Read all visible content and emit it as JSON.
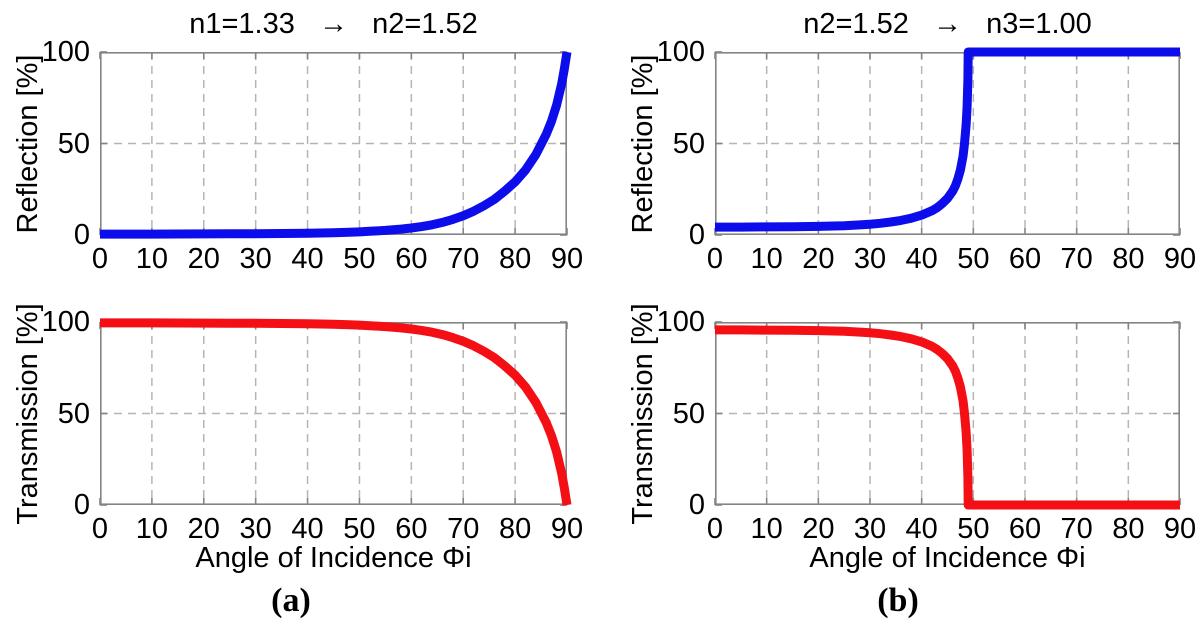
{
  "figure": {
    "background": "#ffffff",
    "captions": {
      "a": "(a)",
      "b": "(b)"
    }
  },
  "chart_data": [
    {
      "id": "a-reflection",
      "type": "line",
      "panel": "a",
      "title": "n1=1.33   →   n2=1.52",
      "ylabel": "Reflection [%]",
      "xlabel": "",
      "color": "#0d0deb",
      "xlim": [
        0,
        90
      ],
      "ylim": [
        0,
        100
      ],
      "xticks": [
        0,
        10,
        20,
        30,
        40,
        50,
        60,
        70,
        80,
        90
      ],
      "yticks": [
        0,
        50,
        100
      ],
      "grid": true,
      "legend": "none",
      "points": [
        [
          0,
          0.5
        ],
        [
          5,
          0.5
        ],
        [
          10,
          0.5
        ],
        [
          15,
          0.55
        ],
        [
          20,
          0.6
        ],
        [
          25,
          0.65
        ],
        [
          30,
          0.7
        ],
        [
          35,
          0.8
        ],
        [
          40,
          1.0
        ],
        [
          45,
          1.2
        ],
        [
          48,
          1.5
        ],
        [
          50,
          1.7
        ],
        [
          52,
          2.0
        ],
        [
          55,
          2.5
        ],
        [
          58,
          3.2
        ],
        [
          60,
          3.8
        ],
        [
          62,
          4.6
        ],
        [
          64,
          5.6
        ],
        [
          66,
          6.9
        ],
        [
          68,
          8.5
        ],
        [
          70,
          10.5
        ],
        [
          72,
          13
        ],
        [
          74,
          16
        ],
        [
          76,
          19.5
        ],
        [
          78,
          24
        ],
        [
          80,
          29
        ],
        [
          82,
          35.5
        ],
        [
          84,
          44
        ],
        [
          86,
          55
        ],
        [
          87,
          62
        ],
        [
          88,
          71
        ],
        [
          89,
          83
        ],
        [
          89.5,
          91
        ],
        [
          90,
          100
        ]
      ]
    },
    {
      "id": "a-transmission",
      "type": "line",
      "panel": "a",
      "title": "",
      "ylabel": "Transmission [%]",
      "xlabel": "Angle of Incidence Φi",
      "color": "#f40f15",
      "xlim": [
        0,
        90
      ],
      "ylim": [
        0,
        100
      ],
      "xticks": [
        0,
        10,
        20,
        30,
        40,
        50,
        60,
        70,
        80,
        90
      ],
      "yticks": [
        0,
        50,
        100
      ],
      "grid": true,
      "legend": "none",
      "points": [
        [
          0,
          99.5
        ],
        [
          5,
          99.5
        ],
        [
          10,
          99.5
        ],
        [
          15,
          99.45
        ],
        [
          20,
          99.4
        ],
        [
          25,
          99.35
        ],
        [
          30,
          99.3
        ],
        [
          35,
          99.2
        ],
        [
          40,
          99.0
        ],
        [
          45,
          98.8
        ],
        [
          48,
          98.5
        ],
        [
          50,
          98.3
        ],
        [
          52,
          98.0
        ],
        [
          55,
          97.5
        ],
        [
          58,
          96.8
        ],
        [
          60,
          96.2
        ],
        [
          62,
          95.4
        ],
        [
          64,
          94.4
        ],
        [
          66,
          93.1
        ],
        [
          68,
          91.5
        ],
        [
          70,
          89.5
        ],
        [
          72,
          87
        ],
        [
          74,
          84
        ],
        [
          76,
          80.5
        ],
        [
          78,
          76
        ],
        [
          80,
          71
        ],
        [
          82,
          64.5
        ],
        [
          84,
          56
        ],
        [
          86,
          45
        ],
        [
          87,
          38
        ],
        [
          88,
          29
        ],
        [
          89,
          17
        ],
        [
          89.5,
          9
        ],
        [
          90,
          0
        ]
      ]
    },
    {
      "id": "b-reflection",
      "type": "line",
      "panel": "b",
      "title": "n2=1.52   →   n3=1.00",
      "ylabel": "Reflection [%]",
      "xlabel": "",
      "color": "#0d0deb",
      "xlim": [
        0,
        90
      ],
      "ylim": [
        0,
        100
      ],
      "xticks": [
        0,
        10,
        20,
        30,
        40,
        50,
        60,
        70,
        80,
        90
      ],
      "yticks": [
        0,
        50,
        100
      ],
      "grid": true,
      "legend": "none",
      "points": [
        [
          0,
          4.3
        ],
        [
          5,
          4.3
        ],
        [
          10,
          4.4
        ],
        [
          15,
          4.5
        ],
        [
          20,
          4.7
        ],
        [
          25,
          5.1
        ],
        [
          28,
          5.5
        ],
        [
          30,
          5.9
        ],
        [
          32,
          6.4
        ],
        [
          34,
          7.1
        ],
        [
          36,
          8.0
        ],
        [
          38,
          9.2
        ],
        [
          40,
          10.9
        ],
        [
          42,
          13.3
        ],
        [
          43,
          15
        ],
        [
          44,
          17.2
        ],
        [
          45,
          20
        ],
        [
          46,
          24
        ],
        [
          46.5,
          26.8
        ],
        [
          47,
          30.5
        ],
        [
          47.5,
          35.5
        ],
        [
          48,
          43
        ],
        [
          48.3,
          50
        ],
        [
          48.6,
          60
        ],
        [
          48.8,
          70
        ],
        [
          48.95,
          85
        ],
        [
          49,
          100
        ],
        [
          50,
          100
        ],
        [
          60,
          100
        ],
        [
          70,
          100
        ],
        [
          80,
          100
        ],
        [
          90,
          100
        ]
      ]
    },
    {
      "id": "b-transmission",
      "type": "line",
      "panel": "b",
      "title": "",
      "ylabel": "Transmission [%]",
      "xlabel": "Angle of Incidence Φi",
      "color": "#f40f15",
      "xlim": [
        0,
        90
      ],
      "ylim": [
        0,
        100
      ],
      "xticks": [
        0,
        10,
        20,
        30,
        40,
        50,
        60,
        70,
        80,
        90
      ],
      "yticks": [
        0,
        50,
        100
      ],
      "grid": true,
      "legend": "none",
      "points": [
        [
          0,
          95.7
        ],
        [
          5,
          95.7
        ],
        [
          10,
          95.6
        ],
        [
          15,
          95.5
        ],
        [
          20,
          95.3
        ],
        [
          25,
          94.9
        ],
        [
          28,
          94.5
        ],
        [
          30,
          94.1
        ],
        [
          32,
          93.6
        ],
        [
          34,
          92.9
        ],
        [
          36,
          92.0
        ],
        [
          38,
          90.8
        ],
        [
          40,
          89.1
        ],
        [
          42,
          86.7
        ],
        [
          43,
          85
        ],
        [
          44,
          82.8
        ],
        [
          45,
          80
        ],
        [
          46,
          76
        ],
        [
          46.5,
          73.2
        ],
        [
          47,
          69.5
        ],
        [
          47.5,
          64.5
        ],
        [
          48,
          57
        ],
        [
          48.3,
          50
        ],
        [
          48.6,
          40
        ],
        [
          48.8,
          30
        ],
        [
          48.95,
          15
        ],
        [
          49,
          0
        ],
        [
          50,
          0
        ],
        [
          60,
          0
        ],
        [
          70,
          0
        ],
        [
          80,
          0
        ],
        [
          90,
          0
        ]
      ]
    }
  ]
}
